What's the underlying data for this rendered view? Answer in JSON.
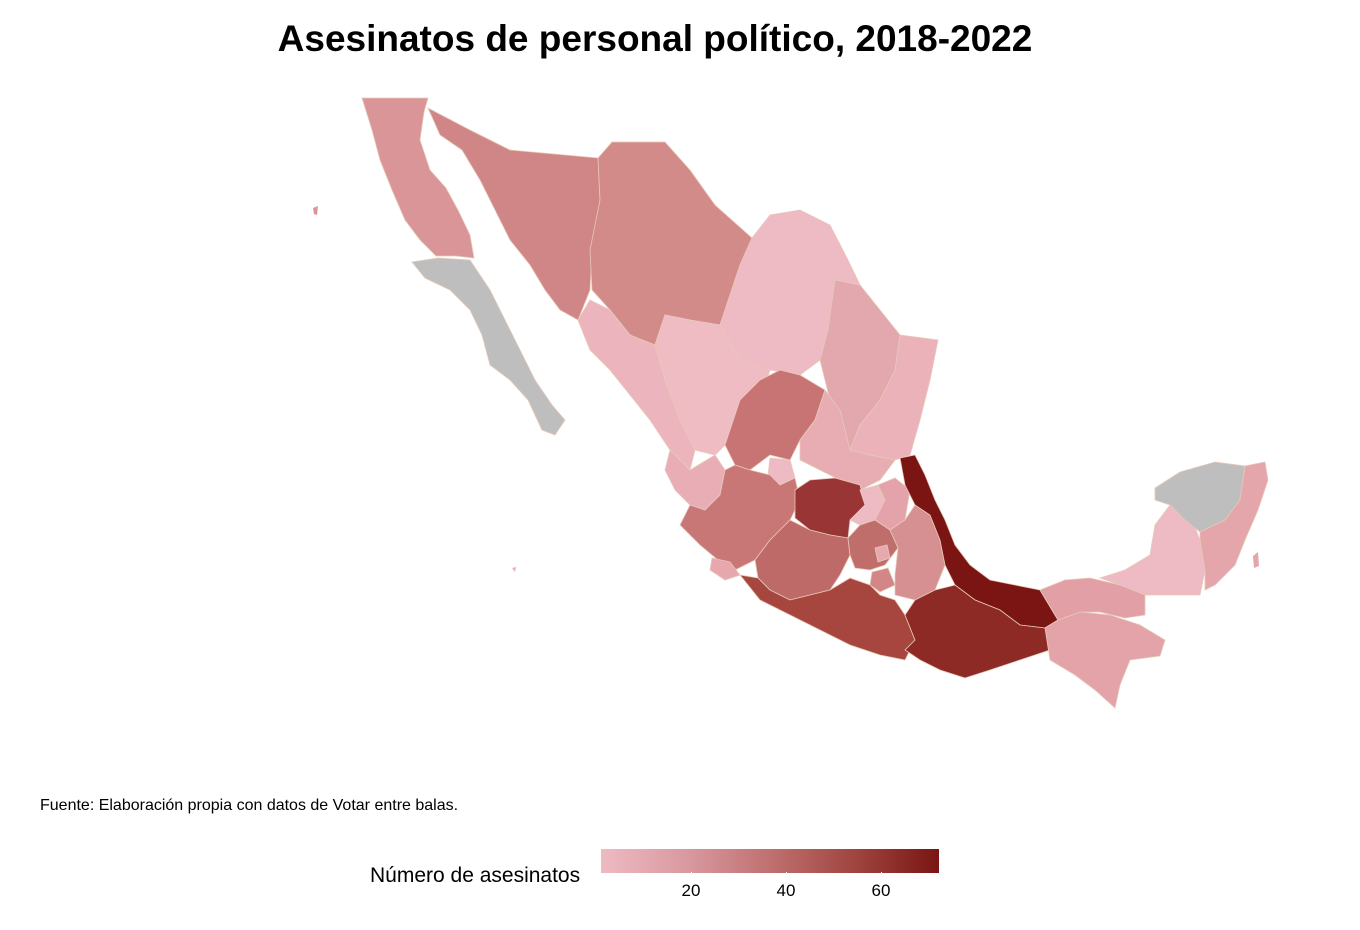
{
  "title": "Asesinatos de personal político, 2018-2022",
  "source": "Fuente: Elaboración propia con datos de Votar entre balas.",
  "legend": {
    "title": "Número de asesinatos",
    "ticks": [
      "20",
      "40",
      "60"
    ],
    "color_low": "#eebac3",
    "color_high": "#7a1513",
    "no_data_color": "#bebebe"
  },
  "map": {
    "region": "México",
    "shading": "Número de asesinatos por estado",
    "states_no_data": [
      "Baja California Sur",
      "Yucatán"
    ]
  }
}
